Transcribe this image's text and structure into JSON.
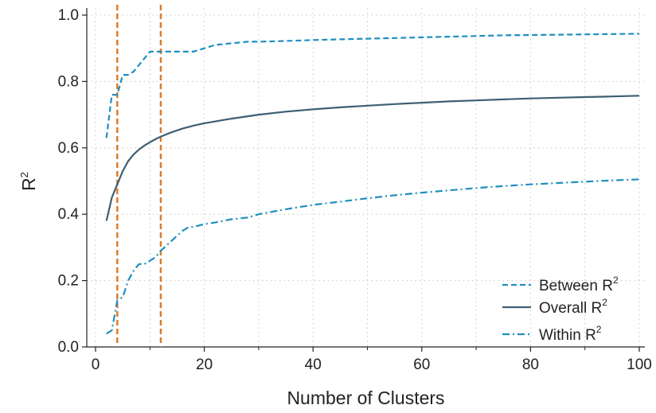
{
  "chart_data": {
    "type": "line",
    "xlabel": "Number of Clusters",
    "ylabel": "R",
    "ylabel_superscript": "2",
    "xlim": [
      0,
      100
    ],
    "ylim": [
      0,
      1
    ],
    "xticks": [
      0,
      20,
      40,
      60,
      80,
      100
    ],
    "xticks_minor": [
      10,
      30,
      50,
      70,
      90
    ],
    "yticks": [
      0.0,
      0.2,
      0.4,
      0.6,
      0.8,
      1.0
    ],
    "ytick_labels": [
      "0.0",
      "0.2",
      "0.4",
      "0.6",
      "0.8",
      "1.0"
    ],
    "grid": true,
    "legend_position": "bottom-right",
    "vlines": [
      4,
      12
    ],
    "colors": {
      "between": "#1f8fbf",
      "overall": "#3d5f73",
      "within": "#1f8fbf",
      "vline": "#e07b28",
      "grid": "#c8c8c8"
    },
    "series": [
      {
        "key": "between",
        "name": "Between",
        "name_superscript": "2",
        "name_prefix_gap": true,
        "style": "dashed",
        "x": [
          2,
          3,
          4,
          5,
          6,
          7,
          8,
          9,
          10,
          11,
          12,
          13,
          14,
          15,
          16,
          17,
          18,
          19,
          20,
          22,
          25,
          28,
          30,
          35,
          40,
          45,
          50,
          55,
          60,
          65,
          70,
          75,
          80,
          85,
          90,
          95,
          100
        ],
        "values": [
          0.63,
          0.76,
          0.76,
          0.82,
          0.82,
          0.83,
          0.85,
          0.87,
          0.89,
          0.89,
          0.89,
          0.89,
          0.89,
          0.89,
          0.89,
          0.89,
          0.89,
          0.895,
          0.9,
          0.91,
          0.915,
          0.92,
          0.92,
          0.922,
          0.925,
          0.927,
          0.929,
          0.931,
          0.933,
          0.935,
          0.937,
          0.939,
          0.94,
          0.941,
          0.942,
          0.943,
          0.944
        ]
      },
      {
        "key": "overall",
        "name": "Overall",
        "name_superscript": "2",
        "name_prefix_gap": false,
        "style": "solid",
        "x": [
          2,
          3,
          4,
          5,
          6,
          7,
          8,
          9,
          10,
          11,
          12,
          14,
          16,
          18,
          20,
          25,
          30,
          35,
          40,
          45,
          50,
          55,
          60,
          65,
          70,
          75,
          80,
          85,
          90,
          95,
          100
        ],
        "values": [
          0.38,
          0.45,
          0.49,
          0.53,
          0.56,
          0.58,
          0.595,
          0.607,
          0.617,
          0.626,
          0.634,
          0.647,
          0.658,
          0.667,
          0.674,
          0.688,
          0.7,
          0.709,
          0.716,
          0.722,
          0.727,
          0.732,
          0.736,
          0.74,
          0.743,
          0.746,
          0.749,
          0.751,
          0.753,
          0.755,
          0.757
        ]
      },
      {
        "key": "within",
        "name": "Within",
        "name_superscript": "2",
        "name_prefix_gap": true,
        "style": "dashdot",
        "x": [
          2,
          3,
          4,
          5,
          6,
          7,
          8,
          9,
          10,
          11,
          12,
          13,
          14,
          15,
          16,
          17,
          18,
          19,
          20,
          22,
          25,
          28,
          30,
          35,
          40,
          45,
          50,
          55,
          60,
          65,
          70,
          75,
          80,
          85,
          90,
          95,
          100
        ],
        "values": [
          0.04,
          0.05,
          0.14,
          0.15,
          0.2,
          0.23,
          0.25,
          0.25,
          0.26,
          0.27,
          0.29,
          0.305,
          0.32,
          0.335,
          0.35,
          0.36,
          0.362,
          0.366,
          0.37,
          0.375,
          0.385,
          0.39,
          0.4,
          0.415,
          0.428,
          0.438,
          0.448,
          0.457,
          0.465,
          0.472,
          0.479,
          0.485,
          0.49,
          0.494,
          0.498,
          0.502,
          0.505
        ]
      }
    ]
  }
}
